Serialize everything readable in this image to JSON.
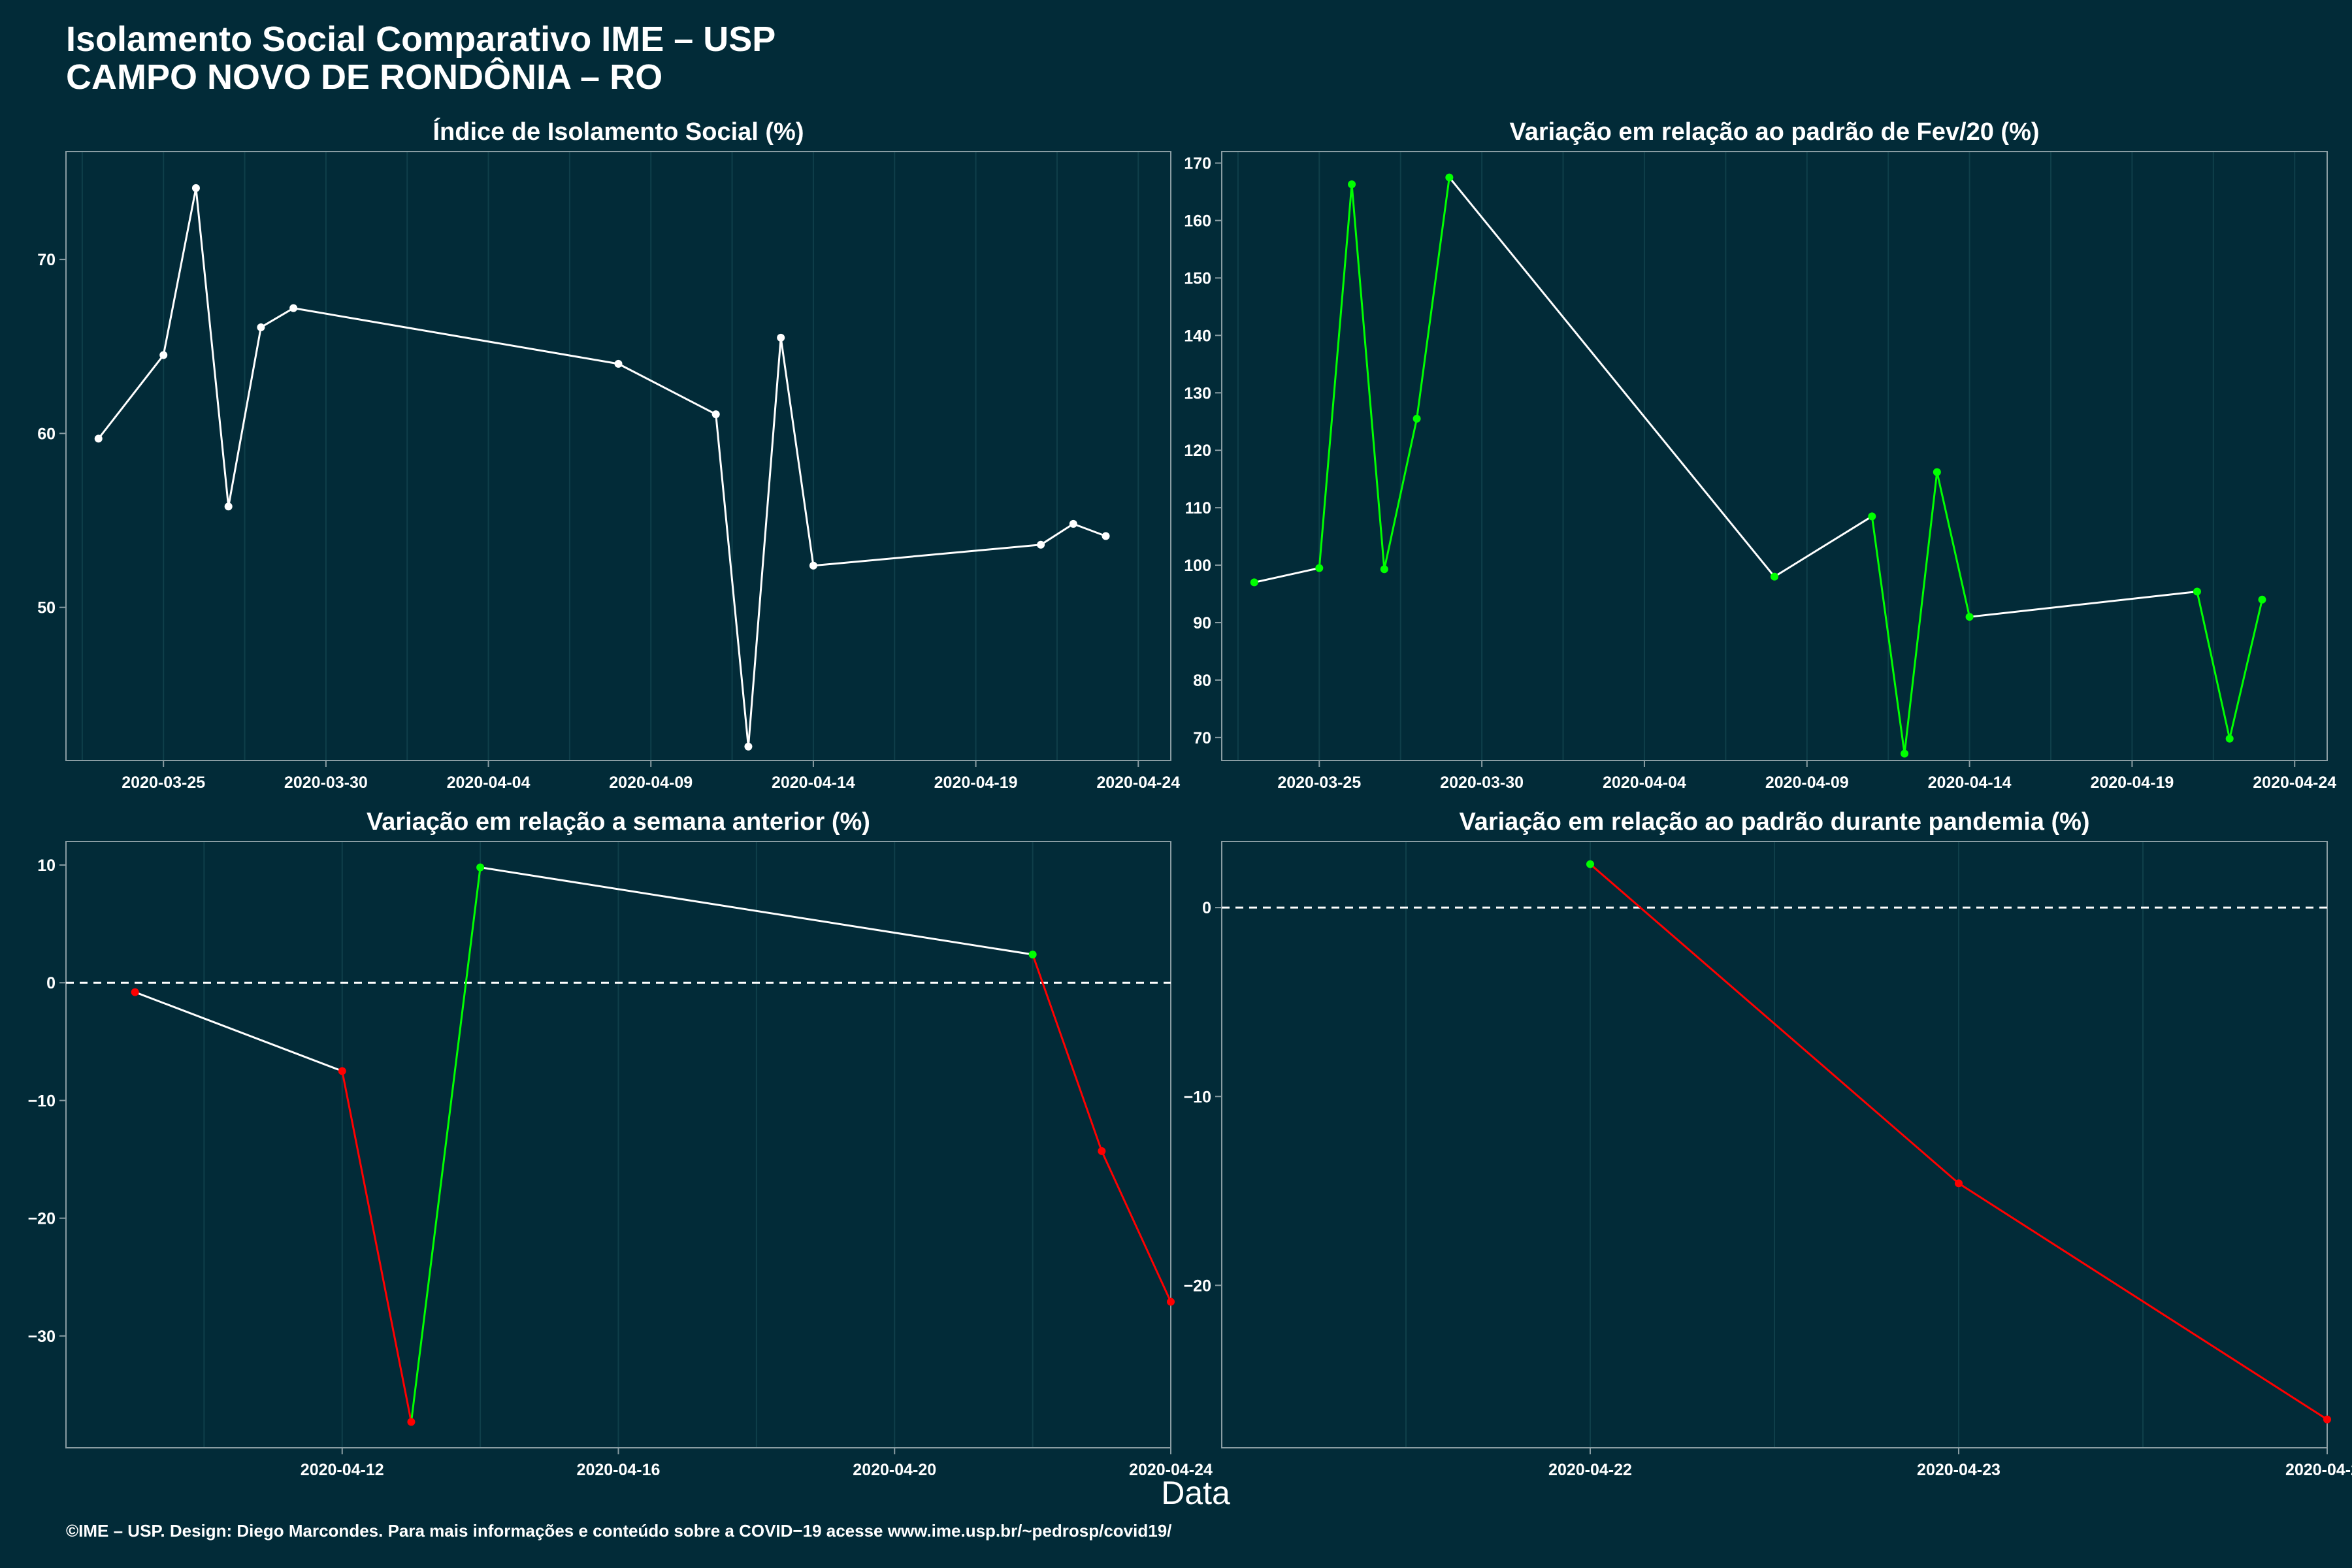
{
  "title_line1": "Isolamento Social Comparativo IME – USP",
  "title_line2": "CAMPO NOVO DE RONDÔNIA – RO",
  "footer": "©IME – USP. Design: Diego Marcondes. Para mais informações e conteúdo sobre a COVID−19 acesse www.ime.usp.br/~pedrosp/covid19/",
  "x_axis_label": "Data",
  "colors": {
    "background": "#022b38",
    "grid": "#0f3f4a",
    "axis": "#8a9da3",
    "neutral": "#ffffff",
    "up": "#00ff00",
    "down": "#ff0000",
    "zero_line": "#ffffff"
  },
  "chart_data": [
    {
      "type": "line",
      "title": "Índice de Isolamento Social (%)",
      "xlabel": "",
      "ylabel": "",
      "x_type": "date",
      "xlim": [
        "2020-03-22",
        "2020-04-25"
      ],
      "ylim": [
        41.2,
        76.2
      ],
      "x_ticks": [
        "2020-03-25",
        "2020-03-30",
        "2020-04-04",
        "2020-04-09",
        "2020-04-14",
        "2020-04-19",
        "2020-04-24"
      ],
      "y_ticks": [
        50,
        60,
        70
      ],
      "zero_line": false,
      "color_mode": "white",
      "points": [
        {
          "x": "2020-03-23",
          "y": 59.7
        },
        {
          "x": "2020-03-25",
          "y": 64.5
        },
        {
          "x": "2020-03-26",
          "y": 74.1
        },
        {
          "x": "2020-03-27",
          "y": 55.8
        },
        {
          "x": "2020-03-28",
          "y": 66.1
        },
        {
          "x": "2020-03-29",
          "y": 67.2
        },
        {
          "x": "2020-04-08",
          "y": 64.0
        },
        {
          "x": "2020-04-11",
          "y": 61.1
        },
        {
          "x": "2020-04-12",
          "y": 42.0
        },
        {
          "x": "2020-04-13",
          "y": 65.5
        },
        {
          "x": "2020-04-14",
          "y": 52.4
        },
        {
          "x": "2020-04-21",
          "y": 53.6
        },
        {
          "x": "2020-04-22",
          "y": 54.8
        },
        {
          "x": "2020-04-23",
          "y": 54.1
        }
      ]
    },
    {
      "type": "line",
      "title": "Variação em relação ao padrão de Fev/20 (%)",
      "xlabel": "",
      "ylabel": "",
      "x_type": "date",
      "xlim": [
        "2020-03-22",
        "2020-04-25"
      ],
      "ylim": [
        66,
        172
      ],
      "x_ticks": [
        "2020-03-25",
        "2020-03-30",
        "2020-04-04",
        "2020-04-09",
        "2020-04-14",
        "2020-04-19",
        "2020-04-24"
      ],
      "y_ticks": [
        70,
        80,
        90,
        100,
        110,
        120,
        130,
        140,
        150,
        160,
        170
      ],
      "zero_line": false,
      "color_mode": "white-up-green",
      "points": [
        {
          "x": "2020-03-23",
          "y": 97
        },
        {
          "x": "2020-03-25",
          "y": 99.5
        },
        {
          "x": "2020-03-26",
          "y": 166.3
        },
        {
          "x": "2020-03-27",
          "y": 99.3
        },
        {
          "x": "2020-03-28",
          "y": 125.5
        },
        {
          "x": "2020-03-29",
          "y": 167.5
        },
        {
          "x": "2020-04-08",
          "y": 98
        },
        {
          "x": "2020-04-11",
          "y": 108.5
        },
        {
          "x": "2020-04-12",
          "y": 67.2
        },
        {
          "x": "2020-04-13",
          "y": 116.2
        },
        {
          "x": "2020-04-14",
          "y": 91
        },
        {
          "x": "2020-04-21",
          "y": 95.4
        },
        {
          "x": "2020-04-22",
          "y": 69.8
        },
        {
          "x": "2020-04-23",
          "y": 94
        }
      ]
    },
    {
      "type": "line",
      "title": "Variação em relação a semana anterior (%)",
      "xlabel": "",
      "ylabel": "",
      "x_type": "date",
      "xlim": [
        "2020-04-08",
        "2020-04-24"
      ],
      "ylim": [
        -39.5,
        12.0
      ],
      "x_ticks": [
        "2020-04-12",
        "2020-04-16",
        "2020-04-20",
        "2020-04-24"
      ],
      "y_ticks": [
        -30,
        -20,
        -10,
        0,
        10
      ],
      "zero_line": true,
      "color_mode": "sign",
      "points": [
        {
          "x": "2020-04-09",
          "y": -0.8
        },
        {
          "x": "2020-04-12",
          "y": -7.5
        },
        {
          "x": "2020-04-13",
          "y": -37.3
        },
        {
          "x": "2020-04-14",
          "y": 9.8
        },
        {
          "x": "2020-04-22",
          "y": 2.4
        },
        {
          "x": "2020-04-23",
          "y": -14.3
        },
        {
          "x": "2020-04-24",
          "y": -27.1
        }
      ]
    },
    {
      "type": "line",
      "title": "Variação em relação ao padrão durante pandemia (%)",
      "xlabel": "",
      "ylabel": "",
      "x_type": "date",
      "xlim": [
        "2020-04-21",
        "2020-04-24"
      ],
      "ylim": [
        -28.6,
        3.5
      ],
      "x_ticks": [
        "2020-04-22",
        "2020-04-23",
        "2020-04-24"
      ],
      "y_ticks": [
        -20,
        -10,
        0
      ],
      "zero_line": true,
      "color_mode": "sign",
      "points": [
        {
          "x": "2020-04-22",
          "y": 2.3
        },
        {
          "x": "2020-04-23",
          "y": -14.6
        },
        {
          "x": "2020-04-24",
          "y": -27.1
        }
      ]
    }
  ]
}
